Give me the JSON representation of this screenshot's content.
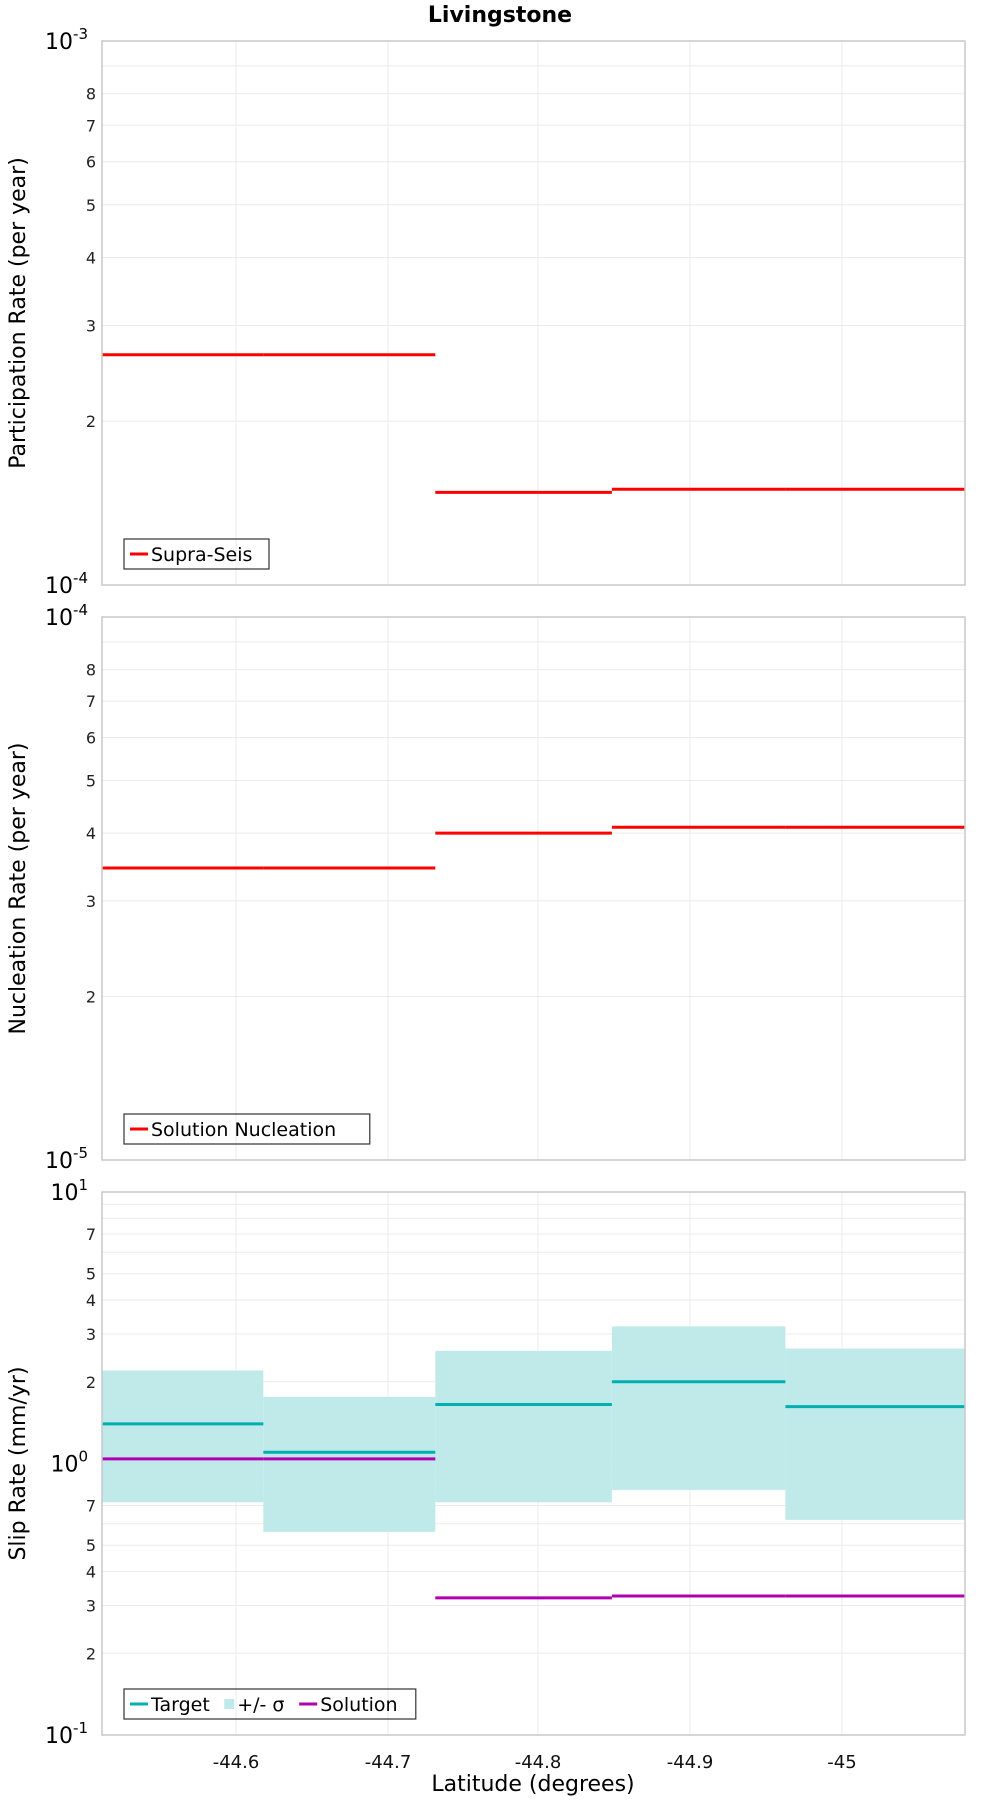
{
  "figure_title": "Livingstone",
  "chart_data": [
    {
      "type": "line",
      "style": "step",
      "ylabel": "Participation Rate (per year)",
      "xlabel": "",
      "yscale": "log",
      "ylim": [
        0.0001,
        0.001
      ],
      "xlim": [
        -44.513,
        -45.08
      ],
      "xticks": [
        "-44.6",
        "-44.7",
        "-44.8",
        "-44.9",
        "-45"
      ],
      "y_decade_labels": [
        {
          "base": "10",
          "exp": "-3"
        },
        {
          "base": "10",
          "exp": "-4"
        }
      ],
      "y_minor_labels": [
        "8",
        "7",
        "6",
        "5",
        "4",
        "3",
        "2"
      ],
      "grid": true,
      "legend_position": "bottom-left",
      "series": [
        {
          "name": "Supra-Seis",
          "color": "#ff0000",
          "segments": [
            {
              "x0": -44.513,
              "x1": -44.619,
              "y": 0.000265
            },
            {
              "x0": -44.619,
              "x1": -44.732,
              "y": 0.000265
            },
            {
              "x0": -44.732,
              "x1": -44.848,
              "y": 0.000148
            },
            {
              "x0": -44.848,
              "x1": -44.962,
              "y": 0.00015
            },
            {
              "x0": -44.962,
              "x1": -45.08,
              "y": 0.00015
            }
          ]
        }
      ]
    },
    {
      "type": "line",
      "style": "step",
      "ylabel": "Nucleation Rate (per year)",
      "xlabel": "",
      "yscale": "log",
      "ylim": [
        1e-05,
        0.0001
      ],
      "xlim": [
        -44.513,
        -45.08
      ],
      "xticks": [
        "-44.6",
        "-44.7",
        "-44.8",
        "-44.9",
        "-45"
      ],
      "y_decade_labels": [
        {
          "base": "10",
          "exp": "-4"
        },
        {
          "base": "10",
          "exp": "-5"
        }
      ],
      "y_minor_labels": [
        "8",
        "7",
        "6",
        "5",
        "4",
        "3",
        "2"
      ],
      "grid": true,
      "legend_position": "bottom-left",
      "series": [
        {
          "name": "Solution Nucleation",
          "color": "#ff0000",
          "segments": [
            {
              "x0": -44.513,
              "x1": -44.619,
              "y": 3.45e-05
            },
            {
              "x0": -44.619,
              "x1": -44.732,
              "y": 3.45e-05
            },
            {
              "x0": -44.732,
              "x1": -44.848,
              "y": 4e-05
            },
            {
              "x0": -44.848,
              "x1": -44.962,
              "y": 4.1e-05
            },
            {
              "x0": -44.962,
              "x1": -45.08,
              "y": 4.1e-05
            }
          ]
        }
      ]
    },
    {
      "type": "line",
      "style": "step",
      "ylabel": "Slip Rate (mm/yr)",
      "xlabel": "Latitude (degrees)",
      "yscale": "log",
      "ylim": [
        0.1,
        10
      ],
      "xlim": [
        -44.513,
        -45.08
      ],
      "xticks": [
        "-44.6",
        "-44.7",
        "-44.8",
        "-44.9",
        "-45"
      ],
      "y_decade_labels": [
        {
          "base": "10",
          "exp": "1"
        },
        {
          "base": "10",
          "exp": "0"
        },
        {
          "base": "10",
          "exp": "-1"
        }
      ],
      "y_minor_labels_upper": [
        "7",
        "5",
        "4",
        "3",
        "2"
      ],
      "y_minor_labels_lower": [
        "7",
        "5",
        "4",
        "3",
        "2"
      ],
      "grid": true,
      "legend_position": "bottom-left",
      "series": [
        {
          "name": "Target",
          "color": "#00b0b0",
          "segments": [
            {
              "x0": -44.513,
              "x1": -44.619,
              "y": 1.4
            },
            {
              "x0": -44.619,
              "x1": -44.732,
              "y": 1.1
            },
            {
              "x0": -44.732,
              "x1": -44.848,
              "y": 1.65
            },
            {
              "x0": -44.848,
              "x1": -44.962,
              "y": 2.0
            },
            {
              "x0": -44.962,
              "x1": -45.08,
              "y": 1.62
            }
          ]
        },
        {
          "name": "+/- σ",
          "color": "#c0eaea",
          "band": [
            {
              "x0": -44.513,
              "x1": -44.619,
              "lo": 0.72,
              "hi": 2.2
            },
            {
              "x0": -44.619,
              "x1": -44.732,
              "lo": 0.56,
              "hi": 1.76
            },
            {
              "x0": -44.732,
              "x1": -44.848,
              "lo": 0.72,
              "hi": 2.6
            },
            {
              "x0": -44.848,
              "x1": -44.962,
              "lo": 0.8,
              "hi": 3.2
            },
            {
              "x0": -44.962,
              "x1": -45.08,
              "lo": 0.62,
              "hi": 2.65
            }
          ]
        },
        {
          "name": "Solution",
          "color": "#b000b0",
          "segments": [
            {
              "x0": -44.513,
              "x1": -44.619,
              "y": 1.04
            },
            {
              "x0": -44.619,
              "x1": -44.732,
              "y": 1.04
            },
            {
              "x0": -44.732,
              "x1": -44.848,
              "y": 0.32
            },
            {
              "x0": -44.848,
              "x1": -44.962,
              "y": 0.325
            },
            {
              "x0": -44.962,
              "x1": -45.08,
              "y": 0.325
            }
          ]
        }
      ]
    }
  ]
}
